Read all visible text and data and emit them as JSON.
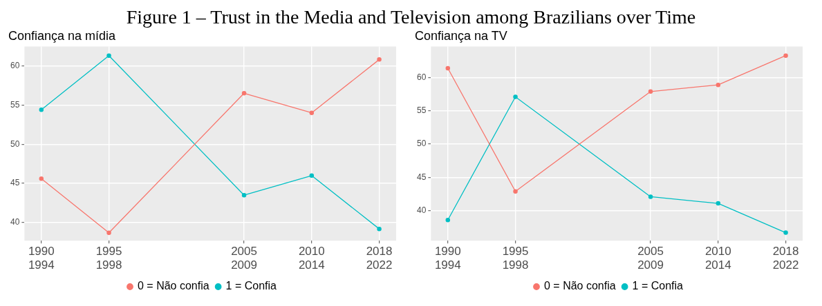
{
  "chart_data": [
    {
      "type": "line",
      "annotations": [
        "Figure 1 – Trust in the Media and Television among Brazilians over Time"
      ],
      "title": "Confiança na mídia",
      "categories": [
        "1990\n1994",
        "1995\n1998",
        null,
        "2005\n2009",
        "2010\n2014",
        "2018\n2022"
      ],
      "ylim": [
        37.7,
        62.45
      ],
      "yticks": [
        40,
        45,
        50,
        55,
        60
      ],
      "series": [
        {
          "name": "0 = Não confia",
          "color": "#f8766d",
          "values": [
            45.6,
            38.7,
            null,
            56.5,
            54.0,
            60.8
          ]
        },
        {
          "name": "1 = Confia",
          "color": "#00bfc4",
          "values": [
            54.4,
            61.3,
            null,
            43.5,
            46.0,
            39.2
          ]
        }
      ],
      "grid": true,
      "legend": "bottom",
      "marker": "circle",
      "line_style": "solid"
    },
    {
      "type": "line",
      "title": "Confiança na TV",
      "categories": [
        "1990\n1994",
        "1995\n1998",
        null,
        "2005\n2009",
        "2010\n2014",
        "2018\n2022"
      ],
      "ylim": [
        35.5,
        64.65
      ],
      "yticks": [
        40,
        45,
        50,
        55,
        60
      ],
      "series": [
        {
          "name": "0 = Não confia",
          "color": "#f8766d",
          "values": [
            61.4,
            42.9,
            null,
            57.9,
            58.9,
            63.3
          ]
        },
        {
          "name": "1 = Confia",
          "color": "#00bfc4",
          "values": [
            38.6,
            57.1,
            null,
            42.1,
            41.1,
            36.7
          ]
        }
      ],
      "grid": true,
      "legend": "bottom",
      "marker": "circle",
      "line_style": "solid"
    }
  ]
}
